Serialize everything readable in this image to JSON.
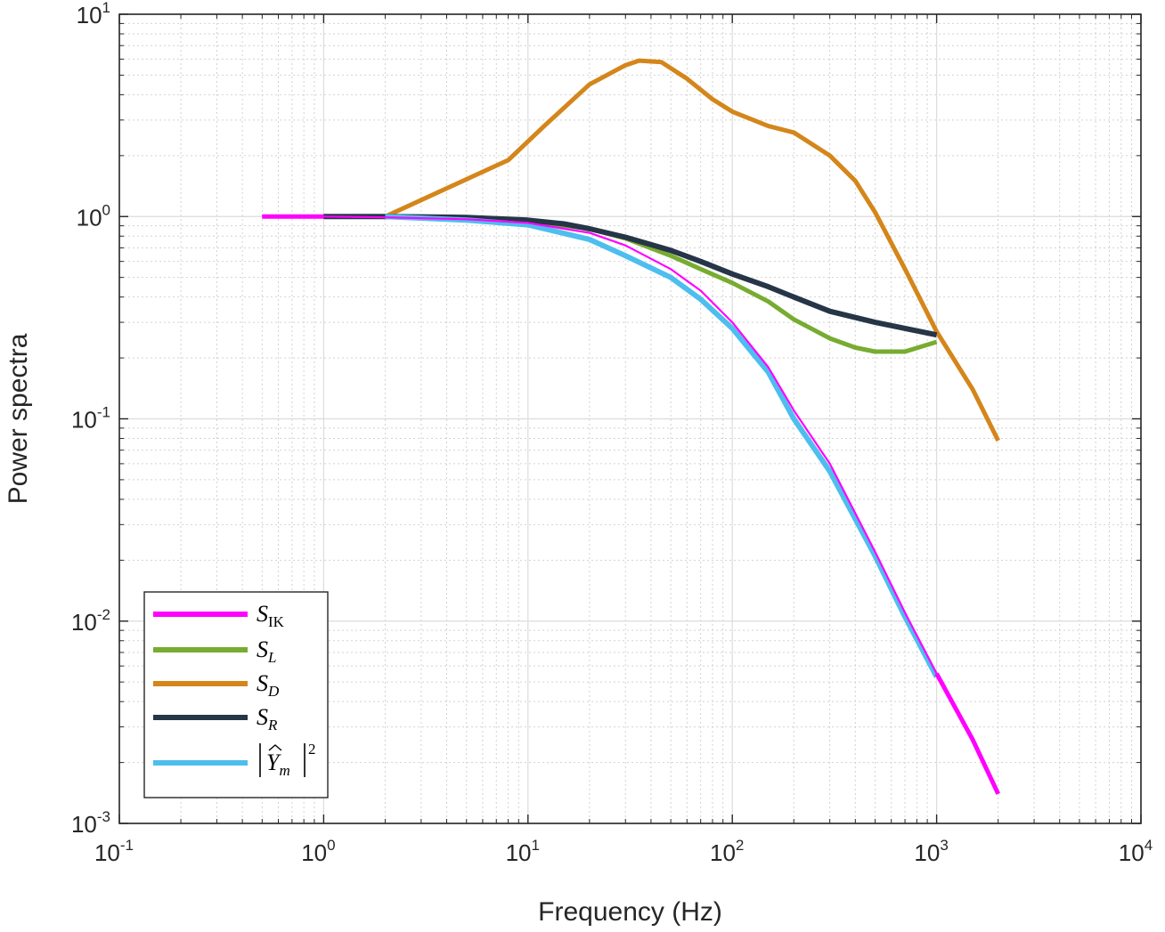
{
  "chart_data": {
    "type": "line",
    "xscale": "log",
    "yscale": "log",
    "xlabel": "Frequency (Hz)",
    "ylabel": "Power spectra",
    "xlim": [
      0.1,
      10000
    ],
    "ylim": [
      0.001,
      10
    ],
    "grid": true,
    "minor_grid": true,
    "legend_position": "bottom-left",
    "x_tick_labels": [
      {
        "base": "10",
        "exp": "-1"
      },
      {
        "base": "10",
        "exp": "0"
      },
      {
        "base": "10",
        "exp": "1"
      },
      {
        "base": "10",
        "exp": "2"
      },
      {
        "base": "10",
        "exp": "3"
      },
      {
        "base": "10",
        "exp": "4"
      }
    ],
    "y_tick_labels": [
      {
        "base": "10",
        "exp": "-3"
      },
      {
        "base": "10",
        "exp": "-2"
      },
      {
        "base": "10",
        "exp": "-1"
      },
      {
        "base": "10",
        "exp": "0"
      },
      {
        "base": "10",
        "exp": "1"
      }
    ],
    "series": [
      {
        "name": "S_IK",
        "legend_main": "S",
        "legend_sub": "IK",
        "color": "#ff00ff",
        "points": [
          [
            0.5,
            1.0
          ],
          [
            1,
            1.0
          ],
          [
            2,
            0.99
          ],
          [
            5,
            0.97
          ],
          [
            10,
            0.93
          ],
          [
            20,
            0.83
          ],
          [
            30,
            0.72
          ],
          [
            50,
            0.55
          ],
          [
            70,
            0.43
          ],
          [
            100,
            0.3
          ],
          [
            150,
            0.18
          ],
          [
            200,
            0.11
          ],
          [
            300,
            0.06
          ],
          [
            500,
            0.022
          ],
          [
            700,
            0.011
          ],
          [
            1000,
            0.0055
          ],
          [
            1500,
            0.0026
          ],
          [
            2000,
            0.0014
          ]
        ]
      },
      {
        "name": "S_L",
        "legend_main": "S",
        "legend_sub": "L",
        "color": "#77ac30",
        "points": [
          [
            1,
            1.0
          ],
          [
            2,
            1.0
          ],
          [
            5,
            0.98
          ],
          [
            10,
            0.95
          ],
          [
            20,
            0.87
          ],
          [
            30,
            0.78
          ],
          [
            50,
            0.64
          ],
          [
            70,
            0.55
          ],
          [
            100,
            0.47
          ],
          [
            150,
            0.38
          ],
          [
            200,
            0.31
          ],
          [
            300,
            0.25
          ],
          [
            400,
            0.225
          ],
          [
            500,
            0.215
          ],
          [
            700,
            0.215
          ],
          [
            1000,
            0.24
          ]
        ]
      },
      {
        "name": "S_D",
        "legend_main": "S",
        "legend_sub": "D",
        "color": "#d4861b",
        "points": [
          [
            2,
            1.0
          ],
          [
            8,
            1.9
          ],
          [
            12,
            2.8
          ],
          [
            20,
            4.5
          ],
          [
            30,
            5.6
          ],
          [
            35,
            5.9
          ],
          [
            45,
            5.8
          ],
          [
            60,
            4.8
          ],
          [
            80,
            3.8
          ],
          [
            100,
            3.3
          ],
          [
            150,
            2.8
          ],
          [
            200,
            2.6
          ],
          [
            300,
            2.0
          ],
          [
            400,
            1.5
          ],
          [
            500,
            1.05
          ],
          [
            700,
            0.55
          ],
          [
            1000,
            0.27
          ],
          [
            1500,
            0.14
          ],
          [
            2000,
            0.078
          ]
        ]
      },
      {
        "name": "S_R",
        "legend_main": "S",
        "legend_sub": "R",
        "color": "#263547",
        "points": [
          [
            1,
            1.0
          ],
          [
            2,
            1.0
          ],
          [
            5,
            0.99
          ],
          [
            10,
            0.96
          ],
          [
            15,
            0.92
          ],
          [
            20,
            0.87
          ],
          [
            30,
            0.79
          ],
          [
            50,
            0.68
          ],
          [
            70,
            0.6
          ],
          [
            100,
            0.52
          ],
          [
            150,
            0.45
          ],
          [
            200,
            0.4
          ],
          [
            300,
            0.34
          ],
          [
            500,
            0.3
          ],
          [
            700,
            0.28
          ],
          [
            1000,
            0.26
          ]
        ]
      },
      {
        "name": "|Y_m|^2",
        "legend_main": "Y",
        "legend_sub": "m",
        "legend_sup": "2",
        "color": "#4dbeee",
        "points": [
          [
            2,
            1.0
          ],
          [
            5,
            0.96
          ],
          [
            10,
            0.91
          ],
          [
            20,
            0.77
          ],
          [
            30,
            0.64
          ],
          [
            50,
            0.5
          ],
          [
            70,
            0.39
          ],
          [
            100,
            0.28
          ],
          [
            150,
            0.17
          ],
          [
            200,
            0.1
          ],
          [
            300,
            0.055
          ],
          [
            500,
            0.021
          ],
          [
            700,
            0.0105
          ],
          [
            1000,
            0.0053
          ]
        ]
      }
    ]
  }
}
